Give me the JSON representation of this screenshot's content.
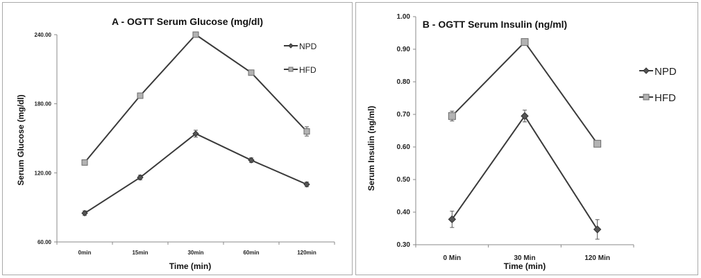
{
  "chart_data": [
    {
      "type": "line",
      "title": "A - OGTT Serum Glucose  (mg/dl)",
      "xlabel": "Time (min)",
      "ylabel": "Serum Glucose (mg/dl)",
      "categories": [
        "0min",
        "15min",
        "30min",
        "60min",
        "120min"
      ],
      "yticks": [
        "60.00",
        "120.00",
        "180.00",
        "240.00"
      ],
      "ylim": [
        60,
        240
      ],
      "grid": false,
      "legend_position": "right",
      "series": [
        {
          "name": "NPD",
          "values": [
            85,
            116,
            154,
            131,
            110
          ],
          "errors": [
            2,
            2,
            3,
            2,
            2
          ],
          "color": "#3a3a3a",
          "marker": "diamond"
        },
        {
          "name": "HFD",
          "values": [
            129,
            187,
            240,
            207,
            156
          ],
          "errors": [
            1,
            1,
            1,
            1,
            4
          ],
          "color": "#3a3a3a",
          "marker": "square"
        }
      ]
    },
    {
      "type": "line",
      "title": "B - OGTT Serum Insulin  (ng/ml)",
      "xlabel": "Time (min)",
      "ylabel": "Serum Insulin (ng/ml)",
      "categories": [
        "0 Min",
        "30 Min",
        "120 Min"
      ],
      "yticks": [
        "0.30",
        "0.40",
        "0.50",
        "0.60",
        "0.70",
        "0.80",
        "0.90",
        "1.00"
      ],
      "ylim": [
        0.3,
        1.0
      ],
      "grid": false,
      "legend_position": "right",
      "series": [
        {
          "name": "NPD",
          "values": [
            0.378,
            0.695,
            0.347
          ],
          "errors": [
            0.025,
            0.018,
            0.03
          ],
          "color": "#3a3a3a",
          "marker": "diamond"
        },
        {
          "name": "HFD",
          "values": [
            0.695,
            0.922,
            0.61
          ],
          "errors": [
            0.015,
            0.01,
            0.005
          ],
          "color": "#3a3a3a",
          "marker": "square"
        }
      ]
    }
  ]
}
